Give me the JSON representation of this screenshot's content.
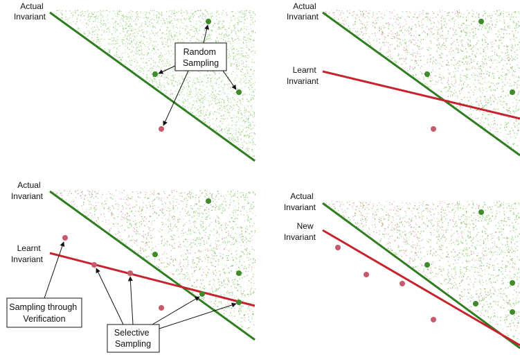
{
  "panels": [
    {
      "id": "top-left",
      "labels": {
        "actual": [
          "Actual",
          "Invariant"
        ]
      },
      "callout": [
        "Random",
        "Sampling"
      ]
    },
    {
      "id": "top-right",
      "labels": {
        "actual": [
          "Actual",
          "Invariant"
        ],
        "learnt": [
          "Learnt",
          "Invariant"
        ]
      }
    },
    {
      "id": "bottom-left",
      "labels": {
        "actual": [
          "Actual",
          "Invariant"
        ],
        "learnt": [
          "Learnt",
          "Invariant"
        ]
      },
      "callout_verification": [
        "Sampling through",
        "Verification"
      ],
      "callout_selective": [
        "Selective",
        "Sampling"
      ]
    },
    {
      "id": "bottom-right",
      "labels": {
        "actual": [
          "Actual",
          "Invariant"
        ],
        "new": [
          "New",
          "Invariant"
        ]
      }
    }
  ],
  "colors": {
    "actual_line": "#2e7d1e",
    "learnt_line": "#c8222e",
    "green_point": "#3f8a2a",
    "red_point": "#c8596a",
    "green_noise": "#6fbf4a",
    "red_noise": "#e08aa0"
  }
}
